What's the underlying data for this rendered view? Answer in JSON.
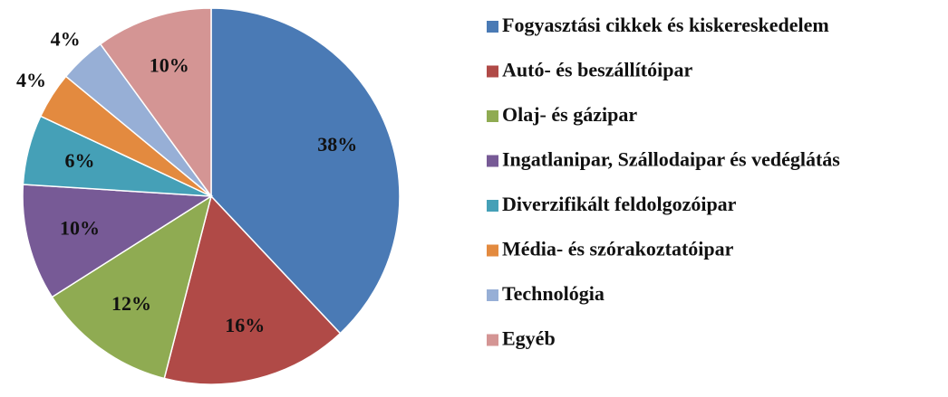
{
  "chart_data": {
    "type": "pie",
    "series": [
      {
        "name": "Fogyasztási cikkek és kiskereskedelem",
        "color": "#4a7ab5",
        "values": [
          38
        ],
        "value_labels": [
          "38%"
        ]
      },
      {
        "name": "Autó- és beszállítóipar",
        "color": "#b04a47",
        "values": [
          16
        ],
        "value_labels": [
          "16%"
        ]
      },
      {
        "name": "Olaj- és gázipar",
        "color": "#8fab52",
        "values": [
          12
        ],
        "value_labels": [
          "12%"
        ]
      },
      {
        "name": "Ingatlanipar, Szállodaipar és vedéglátás",
        "color": "#775a96",
        "values": [
          10
        ],
        "value_labels": [
          "10%"
        ]
      },
      {
        "name": "Diverzifikált feldolgozóipar",
        "color": "#45a0b7",
        "values": [
          6
        ],
        "value_labels": [
          "6%"
        ]
      },
      {
        "name": "Média- és szórakoztatóipar",
        "color": "#e38a3f",
        "values": [
          4
        ],
        "value_labels": [
          "4%"
        ]
      },
      {
        "name": "Technológia",
        "color": "#97afd6",
        "values": [
          4
        ],
        "value_labels": [
          "4%"
        ]
      },
      {
        "name": "Egyéb",
        "color": "#d49594",
        "values": [
          10
        ],
        "value_labels": [
          "10%"
        ]
      }
    ]
  }
}
